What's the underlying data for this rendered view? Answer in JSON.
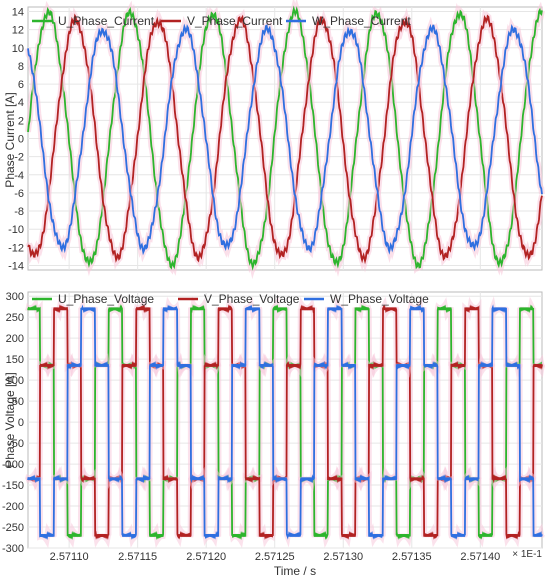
{
  "chart_data": [
    {
      "type": "line",
      "ylabel": "Phase Current [A]",
      "xlim": [
        2.57107,
        2.571445
      ],
      "ylim": [
        -14.5,
        14.5
      ],
      "yticks": [
        14,
        12,
        10,
        8,
        6,
        4,
        2,
        0,
        -2,
        -4,
        -6,
        -8,
        -10,
        -12,
        -14
      ],
      "grid": true,
      "legend": "top-left",
      "series": [
        {
          "name": "U_Phase_Current",
          "color": "#2db52d",
          "amplitude": 13.8,
          "period": 6e-05,
          "phase_deg": 0,
          "values_at_start": 0.4
        },
        {
          "name": "V_Phase_Current",
          "color": "#b22222",
          "amplitude": 13.0,
          "period": 6e-05,
          "phase_deg": -120,
          "values_at_start": -12.0
        },
        {
          "name": "W_Phase_Current",
          "color": "#2f6fe0",
          "amplitude": 12.0,
          "period": 6e-05,
          "phase_deg": 120,
          "values_at_start": 10.0
        }
      ]
    },
    {
      "type": "line",
      "ylabel": "Phase Voltage [A]",
      "xlabel": "Time / s",
      "x_multiplier": "× 1E-1",
      "xlim": [
        2.57107,
        2.571445
      ],
      "ylim": [
        -300,
        310
      ],
      "xticks": [
        "2.57110",
        "2.57115",
        "2.57120",
        "2.57125",
        "2.57130",
        "2.57135",
        "2.57140"
      ],
      "xtick_values": [
        2.5711,
        2.57115,
        2.5712,
        2.57125,
        2.5713,
        2.57135,
        2.5714
      ],
      "yticks": [
        300,
        250,
        200,
        150,
        100,
        50,
        0,
        -50,
        -100,
        -150,
        -200,
        -250,
        -300
      ],
      "grid": true,
      "legend": "top-left",
      "series": [
        {
          "name": "U_Phase_Voltage",
          "color": "#2db52d",
          "levels": [
            270,
            135,
            -135,
            -270,
            -135,
            135
          ],
          "phase_deg": 0
        },
        {
          "name": "V_Phase_Voltage",
          "color": "#b22222",
          "levels": [
            270,
            135,
            -135,
            -270,
            -135,
            135
          ],
          "phase_deg": -120
        },
        {
          "name": "W_Phase_Voltage",
          "color": "#2f6fe0",
          "levels": [
            270,
            135,
            -135,
            -270,
            -135,
            135
          ],
          "phase_deg": 120
        }
      ],
      "period": 6e-05
    }
  ]
}
